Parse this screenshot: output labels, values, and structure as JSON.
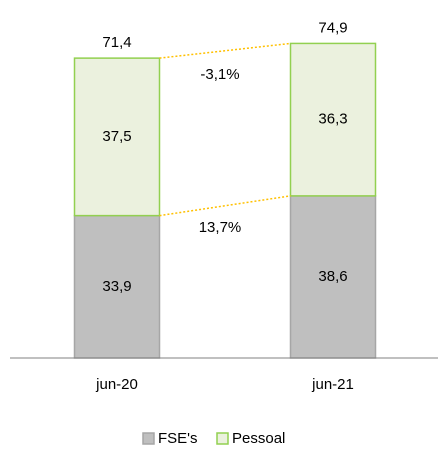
{
  "chart_data": {
    "type": "stacked_bar",
    "categories": [
      "jun-20",
      "jun-21"
    ],
    "series": [
      {
        "name": "FSE's",
        "color": "#bfbfbf",
        "values": [
          33.9,
          38.6
        ],
        "value_labels": [
          "33,9",
          "38,6"
        ]
      },
      {
        "name": "Pessoal",
        "color": "#ebf1de",
        "values": [
          37.5,
          36.3
        ],
        "value_labels": [
          "37,5",
          "36,3"
        ]
      }
    ],
    "totals": {
      "values": [
        71.4,
        74.9
      ],
      "value_labels": [
        "71,4",
        "74,9"
      ]
    },
    "annotations": [
      "-3,1%",
      "13,7%"
    ],
    "ylim": [
      0,
      80
    ],
    "legend": "bottom"
  }
}
